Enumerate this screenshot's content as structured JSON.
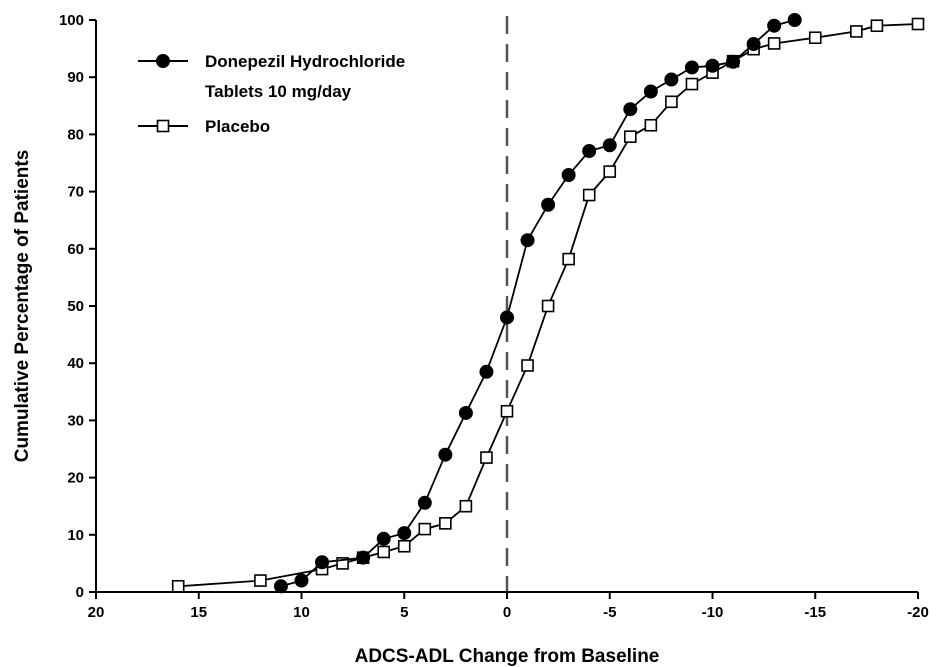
{
  "chart_data": {
    "type": "line",
    "xlabel": "ADCS-ADL Change from Baseline",
    "ylabel": "Cumulative Percentage of Patients",
    "xlim": [
      20,
      -20
    ],
    "ylim": [
      0,
      100
    ],
    "x_reversed": true,
    "xticks": [
      20,
      15,
      10,
      5,
      0,
      -5,
      -10,
      -15,
      -20
    ],
    "xtick_labels": [
      "20",
      "15",
      "10",
      "5",
      "0",
      "-5",
      "-10",
      "-15",
      "-20"
    ],
    "yticks": [
      0,
      10,
      20,
      30,
      40,
      50,
      60,
      70,
      80,
      90,
      100
    ],
    "reference_line": {
      "x": 0,
      "style": "dashed"
    },
    "grid": false,
    "legend_position": "top-left",
    "series": [
      {
        "name_lines": [
          "Donepezil Hydrochloride",
          "Tablets 10 mg/day"
        ],
        "marker": "filled-circle",
        "color": "#000000",
        "x": [
          11,
          10,
          9,
          7,
          6,
          5,
          4,
          3,
          2,
          1,
          0,
          -1,
          -2,
          -3,
          -4,
          -5,
          -6,
          -7,
          -8,
          -9,
          -10,
          -11,
          -12,
          -13,
          -14
        ],
        "y": [
          1,
          2,
          5.2,
          6,
          9.3,
          10.3,
          15.6,
          24,
          31.3,
          38.5,
          48,
          61.5,
          67.7,
          72.9,
          77.1,
          78.1,
          84.4,
          87.5,
          89.6,
          91.7,
          92,
          92.7,
          95.8,
          99,
          100
        ]
      },
      {
        "name": "Placebo",
        "marker": "open-square",
        "color": "#000000",
        "x": [
          16,
          12,
          9,
          8,
          7,
          6,
          5,
          4,
          3,
          2,
          1,
          0,
          -1,
          -2,
          -3,
          -4,
          -5,
          -6,
          -7,
          -8,
          -9,
          -10,
          -11,
          -12,
          -13,
          -15,
          -17,
          -18,
          -20
        ],
        "y": [
          1,
          2,
          4,
          5,
          6,
          7,
          8,
          11,
          12,
          15,
          23.5,
          31.6,
          39.6,
          50,
          58.2,
          69.4,
          73.5,
          79.6,
          81.6,
          85.7,
          88.8,
          90.8,
          92.8,
          94.9,
          95.9,
          96.9,
          98,
          99,
          99.3
        ]
      }
    ]
  }
}
